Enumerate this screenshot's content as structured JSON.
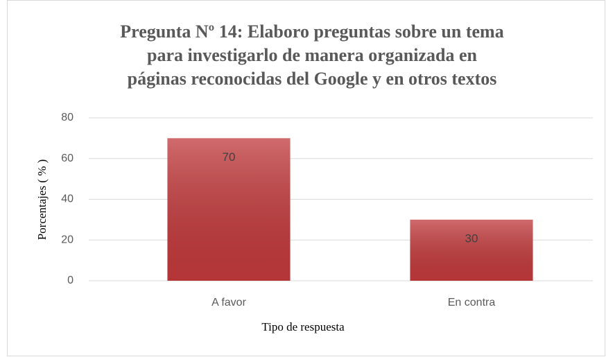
{
  "chart_data": {
    "type": "bar",
    "title": [
      "Pregunta Nº 14: Elaboro preguntas sobre un tema",
      "para investigarlo de manera organizada en",
      "páginas reconocidas del Google y en otros textos"
    ],
    "x_label": "Tipo de respuesta",
    "y_label": "Porcentajes ( % )",
    "categories": [
      "A favor",
      "En contra"
    ],
    "values": [
      70,
      30
    ],
    "color": "#c0393b",
    "ylim": [
      0,
      80
    ],
    "yticks": [
      0,
      20,
      40,
      60,
      80
    ],
    "grid": true
  }
}
